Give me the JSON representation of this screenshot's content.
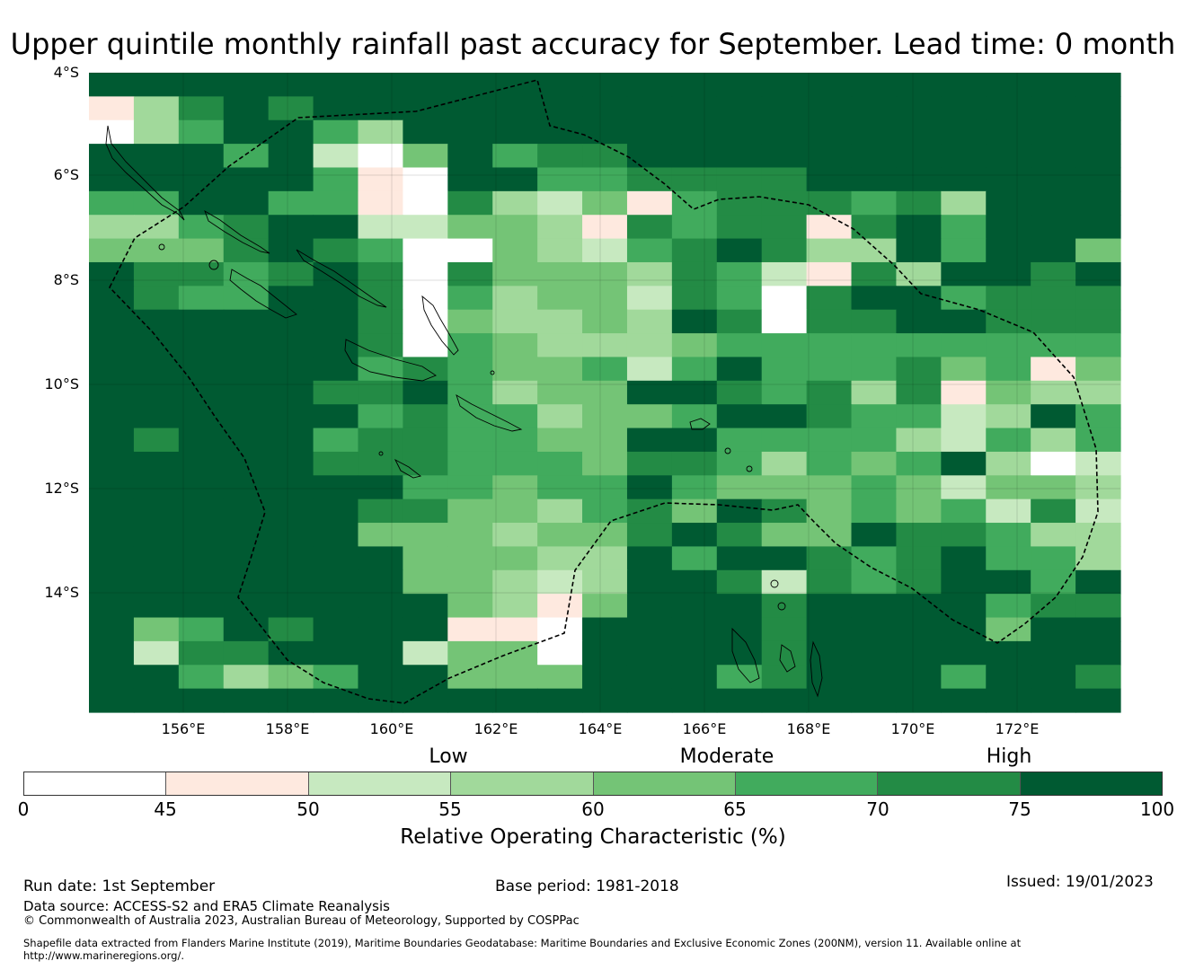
{
  "title": "Upper quintile monthly rainfall past accuracy for September. Lead time: 0 month",
  "map": {
    "lon_range": [
      154.2,
      174.0
    ],
    "lat_range": [
      -16.3,
      -4.0
    ],
    "cell_size_deg": 0.83,
    "lat_ticks": [
      "4°S",
      "6°S",
      "8°S",
      "10°S",
      "12°S",
      "14°S"
    ],
    "lon_ticks": [
      "156°E",
      "158°E",
      "160°E",
      "162°E",
      "164°E",
      "166°E",
      "168°E",
      "170°E",
      "172°E"
    ],
    "grid_rows": [
      "77777777777777777777777",
      "13676777777777777777777",
      "03577537777777777777777",
      "77757204756677777777777",
      "77777510775566667777777",
      "55775510632415666563777",
      "33567722443165661675777",
      "44467650043256763375774",
      "76656760644436521637767",
      "76557760534426506775666",
      "77777760433437606677666",
      "77777760543334555555555",
      "77777756544525755564514",
      "77777667534477656361433",
      "77777756553445776552375",
      "76777566554477555532535",
      "77777666555466535457302",
      "77777775545575444542443",
      "77777766443564764545262",
      "77777744434467644766533",
      "77777774443375776567553",
      "77777774432377626567757",
      "77777777431477767777566",
      "74576777110777767777477",
      "72667772440777767777777",
      "77534577444777567775776",
      "77777777777777777777777"
    ],
    "levels": [
      "0-45",
      "45-50",
      "50-55",
      "55-60",
      "60-65",
      "65-70",
      "70-75",
      "75-100"
    ],
    "colors": [
      "#ffffff",
      "#fee9df",
      "#c7e9c0",
      "#a1d99b",
      "#74c476",
      "#41ab5d",
      "#238b45",
      "#005a32"
    ]
  },
  "legend": {
    "categories": [
      "Low",
      "Moderate",
      "High"
    ],
    "ticks": [
      "0",
      "45",
      "50",
      "55",
      "60",
      "65",
      "70",
      "75",
      "100"
    ],
    "title": "Relative Operating Characteristic (%)"
  },
  "footer": {
    "run_date": "Run date: 1st September",
    "base_period": "Base period: 1981-2018",
    "issued": "Issued: 19/01/2023",
    "data_source": "Data source: ACCESS-S2 and ERA5 Climate Reanalysis",
    "copyright": "© Commonwealth of Australia 2023, Australian Bureau of Meteorology, Supported by COSPPac",
    "shapefile_line1": "Shapefile data extracted from Flanders Marine Institute (2019), Maritime Boundaries Geodatabase: Maritime Boundaries and Exclusive Economic Zones (200NM), version 11. Available online at",
    "shapefile_line2": "http://www.marineregions.org/."
  }
}
